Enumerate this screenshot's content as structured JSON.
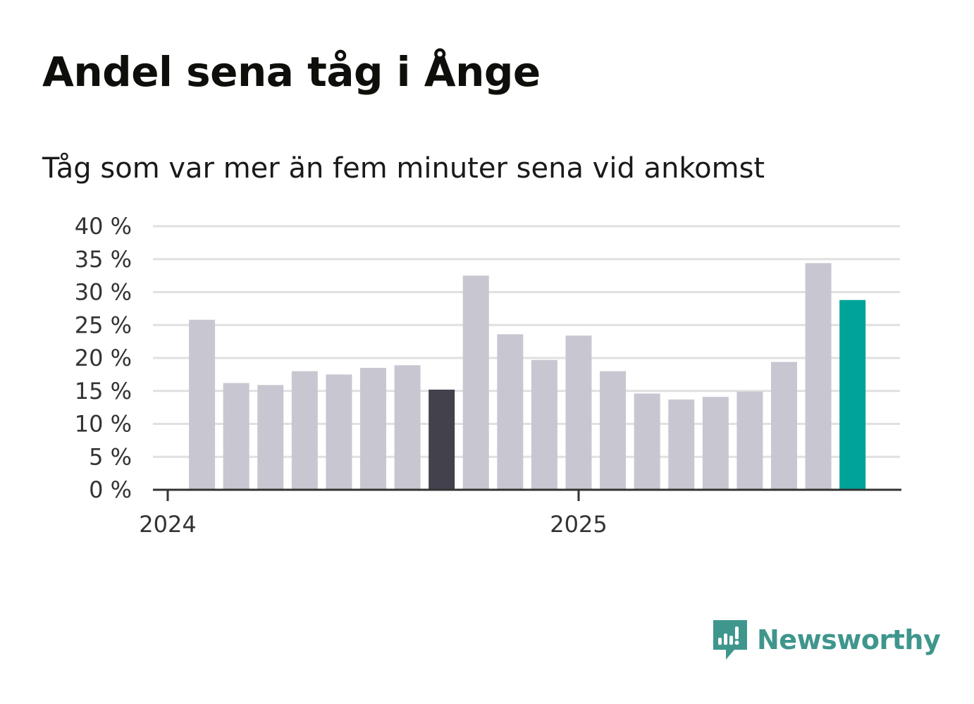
{
  "title": "Andel sena tåg i Ånge",
  "subtitle": "Tåg som var mer än fem minuter sena vid ankomst",
  "brand": {
    "name": "Newsworthy",
    "color": "#3f968d"
  },
  "colors": {
    "bar": "#c8c7d1",
    "highlight_previous_year": "#43414c",
    "highlight_latest": "#00a398",
    "grid": "#e0e0e0",
    "axis": "#333333"
  },
  "chart_data": {
    "type": "bar",
    "title": "Andel sena tåg i Ånge",
    "subtitle": "Tåg som var mer än fem minuter sena vid ankomst",
    "xlabel": "",
    "ylabel": "",
    "ylim": [
      0,
      40
    ],
    "yticks": [
      0,
      5,
      10,
      15,
      20,
      25,
      30,
      35,
      40
    ],
    "ytick_labels": [
      "0 %",
      "5 %",
      "10 %",
      "15 %",
      "20 %",
      "25 %",
      "30 %",
      "35 %",
      "40 %"
    ],
    "unit": "%",
    "grid": true,
    "x_tick_labels": [
      {
        "label": "2024",
        "at_month": "2024-01"
      },
      {
        "label": "2025",
        "at_month": "2025-01"
      }
    ],
    "categories": [
      "2024-02",
      "2024-03",
      "2024-04",
      "2024-05",
      "2024-06",
      "2024-07",
      "2024-08",
      "2024-09",
      "2024-10",
      "2024-11",
      "2024-12",
      "2025-01",
      "2025-02",
      "2025-03",
      "2025-04",
      "2025-05",
      "2025-06",
      "2025-07",
      "2025-08",
      "2025-09"
    ],
    "values": [
      25.8,
      16.2,
      15.9,
      18.0,
      17.5,
      18.5,
      18.9,
      15.2,
      32.5,
      23.6,
      19.7,
      23.4,
      18.0,
      14.6,
      13.7,
      14.1,
      14.9,
      19.4,
      34.4,
      28.8
    ],
    "highlight": {
      "2024-09": "previous_year",
      "2025-09": "latest"
    }
  }
}
